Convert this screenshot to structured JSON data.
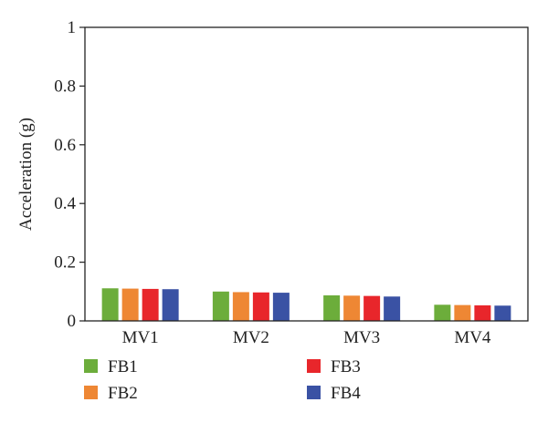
{
  "chart_data": {
    "type": "bar",
    "title": "",
    "xlabel": "",
    "ylabel": "Acceleration (g)",
    "ylim": [
      0,
      1
    ],
    "yticks": [
      0,
      0.2,
      0.4,
      0.6,
      0.8,
      1
    ],
    "ytick_labels": [
      "0",
      "0.2",
      "0.4",
      "0.6",
      "0.8",
      "1"
    ],
    "categories": [
      "MV1",
      "MV2",
      "MV3",
      "MV4"
    ],
    "series": [
      {
        "name": "FB1",
        "color": "#6cad3b",
        "values": [
          0.111,
          0.1,
          0.087,
          0.055
        ]
      },
      {
        "name": "FB2",
        "color": "#ee8734",
        "values": [
          0.11,
          0.098,
          0.086,
          0.054
        ]
      },
      {
        "name": "FB3",
        "color": "#e8262b",
        "values": [
          0.109,
          0.097,
          0.085,
          0.053
        ]
      },
      {
        "name": "FB4",
        "color": "#3a52a4",
        "values": [
          0.108,
          0.096,
          0.083,
          0.052
        ]
      }
    ],
    "grid": false,
    "legend_position": "bottom"
  }
}
